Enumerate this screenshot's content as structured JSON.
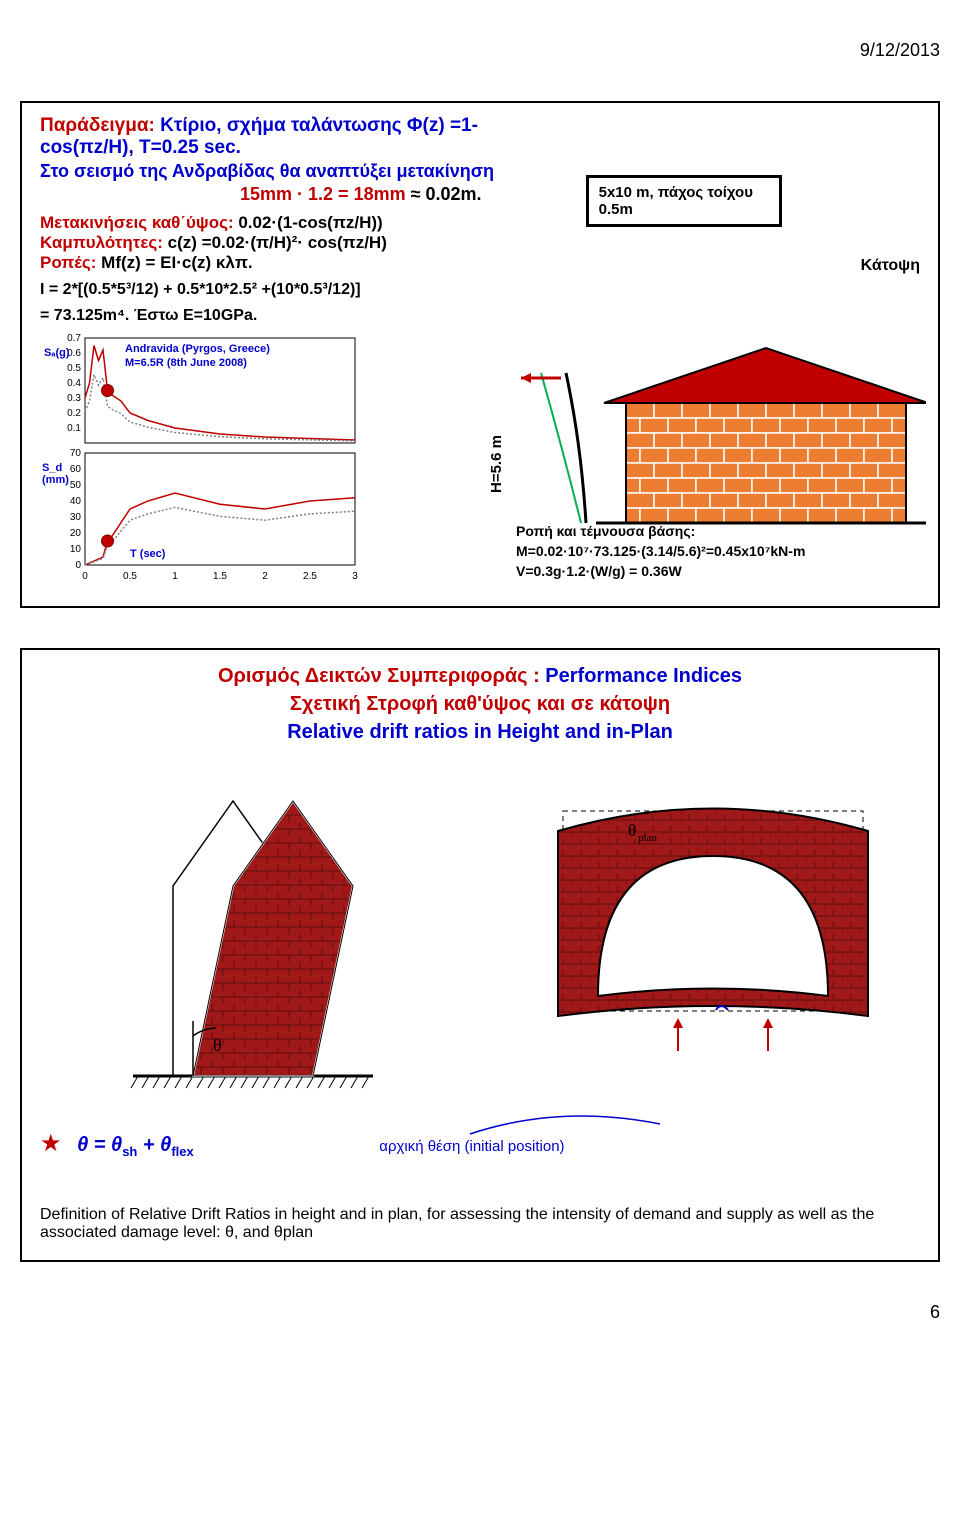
{
  "page_date": "9/12/2013",
  "page_number": "6",
  "slide1": {
    "title_prefix": "Παράδειγμα:",
    "title_rest": " Κτίριο, σχήμα ταλάντωσης Φ(z) =1-cos(πz/H), T=0.25 sec.",
    "subline": "Στο σεισμό της Ανδραβίδας θα αναπτύξει μετακίνηση",
    "indent_red": "15mm · 1.2 = 18mm",
    "indent_black": " ≈ 0.02m.",
    "params": {
      "p1_label": "Μετακινήσεις καθ΄ύψος:",
      "p1_val": " 0.02·(1-cos(πz/H))",
      "p2_label": "Καμπυλότητες:",
      "p2_val": " c(z) =0.02·(π/H)²· cos(πz/H)",
      "p3_label": "Ροπές:",
      "p3_val": " Mf(z) = EI·c(z) κλπ."
    },
    "i_line1": "I = 2*[(0.5*5³/12) + 0.5*10*2.5² +(10*0.5³/12)]",
    "i_line2": "= 73.125m⁴. Έστω E=10GPa.",
    "wall_box": "5x10 m, πάχος τοίχου 0.5m",
    "katopsi": "Κάτοψη",
    "chart": {
      "type": "line",
      "upper_ylabel_html": "S<sub>a</sub>(g)",
      "upper_yticks": [
        "0.7",
        "0.6",
        "0.5",
        "0.4",
        "0.3",
        "0.2",
        "0.1"
      ],
      "lower_ylabel_html": "S<sub>d</sub> (mm)",
      "lower_yticks": [
        "70",
        "60",
        "50",
        "40",
        "30",
        "20",
        "10",
        "0"
      ],
      "xticks": [
        "0",
        "0.5",
        "1",
        "1.5",
        "2",
        "2.5",
        "3"
      ],
      "legend1": "Andravida (Pyrgos, Greece)",
      "legend2": "M=6.5R (8th June 2008)",
      "xlabel": "T (sec)",
      "line_colors": [
        "#c00000",
        "#404040",
        "#808080"
      ],
      "marker_color": "#c00000",
      "upper_series": [
        [
          [
            0,
            0.3
          ],
          [
            0.05,
            0.4
          ],
          [
            0.1,
            0.65
          ],
          [
            0.15,
            0.55
          ],
          [
            0.2,
            0.62
          ],
          [
            0.25,
            0.35
          ],
          [
            0.3,
            0.32
          ],
          [
            0.4,
            0.28
          ],
          [
            0.5,
            0.2
          ],
          [
            0.7,
            0.15
          ],
          [
            1.0,
            0.1
          ],
          [
            1.5,
            0.06
          ],
          [
            2.0,
            0.04
          ],
          [
            2.5,
            0.03
          ],
          [
            3.0,
            0.02
          ]
        ]
      ],
      "lower_series": [
        [
          [
            0,
            0
          ],
          [
            0.2,
            5
          ],
          [
            0.25,
            15
          ],
          [
            0.3,
            18
          ],
          [
            0.5,
            35
          ],
          [
            0.7,
            40
          ],
          [
            1.0,
            45
          ],
          [
            1.5,
            38
          ],
          [
            2.0,
            35
          ],
          [
            2.5,
            40
          ],
          [
            3.0,
            42
          ]
        ]
      ],
      "marker_upper": [
        0.25,
        0.35
      ],
      "marker_lower": [
        0.25,
        15
      ],
      "upper_ylim": [
        0,
        0.7
      ],
      "lower_ylim": [
        0,
        70
      ],
      "xlim": [
        0,
        3
      ]
    },
    "h_label": "H=5.6 m",
    "base_title": "Ροπή και τέμνουσα βάσης:",
    "base_m": "M=0.02·10⁷·73.125·(3.14/5.6)²=0.45x10⁷kN-m",
    "base_v": "V=0.3g·1.2·(W/g) = 0.36W",
    "colors": {
      "brick": "#ed7d31",
      "brick_stroke": "#ffffff",
      "roof_fill": "#c00000",
      "roof_line": "#000000",
      "deflection": "#00b050",
      "arrow": "#c00000"
    }
  },
  "slide2": {
    "title_l1_red": "Ορισμός Δεικτών Συμπεριφοράς :",
    "title_l1_blue": "  Performance Indices",
    "title_l2_red": "Σχετική Στροφή καθ'ύψος και σε κάτοψη",
    "title_l3_blue": "Relative drift ratios in Height and in-Plan",
    "theta": "θ",
    "theta_plan": "θplan",
    "formula_html": "θ = θ<sub>sh</sub> + θ<sub>flex</sub>",
    "initial_pos": "αρχική θέση (initial position)",
    "definition": "Definition of Relative Drift Ratios in height and in plan, for assessing the intensity of demand and supply as well as the associated damage level:  θ, and θplan",
    "colors": {
      "masonry_fill": "#a01818",
      "masonry_dark": "#601010",
      "outline": "#ffffff",
      "ground_hatch": "#000000",
      "arch_interior": "#ffffff",
      "theta_text": "#000000"
    }
  }
}
